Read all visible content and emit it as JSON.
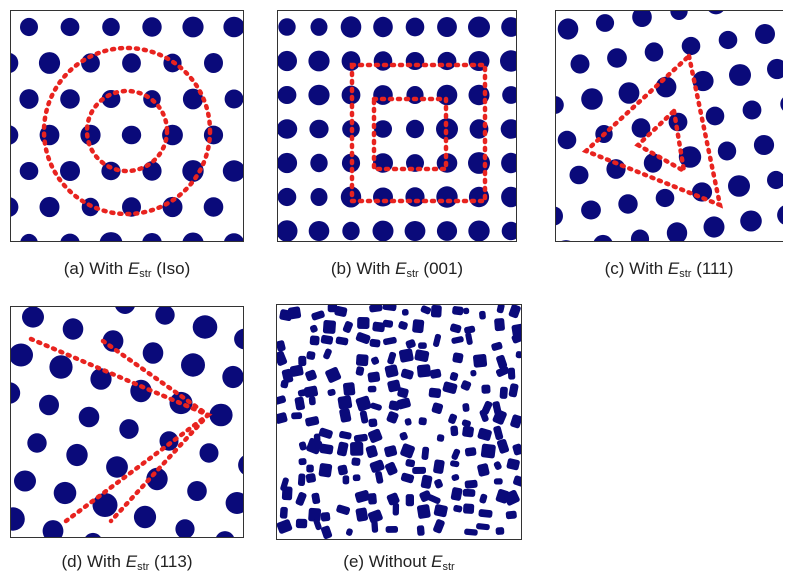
{
  "figure": {
    "panels": [
      {
        "id": "a",
        "prefix": "(a) With ",
        "symbol": "E",
        "subscript": "str",
        "suffix": " (Iso)",
        "overlay": "circles"
      },
      {
        "id": "b",
        "prefix": "(b) With ",
        "symbol": "E",
        "subscript": "str",
        "suffix": " (001)",
        "overlay": "squares"
      },
      {
        "id": "c",
        "prefix": "(c) With ",
        "symbol": "E",
        "subscript": "str",
        "suffix": " (111)",
        "overlay": "triangles"
      },
      {
        "id": "d",
        "prefix": "(d) With ",
        "symbol": "E",
        "subscript": "str",
        "suffix": " (113)",
        "overlay": "chevron"
      },
      {
        "id": "e",
        "prefix": "(e) Without ",
        "symbol": "E",
        "subscript": "str",
        "suffix": "",
        "overlay": "none"
      }
    ],
    "colors": {
      "particle": "#0a0a7a",
      "overlay": "#e8231f",
      "frame": "#333333"
    }
  }
}
